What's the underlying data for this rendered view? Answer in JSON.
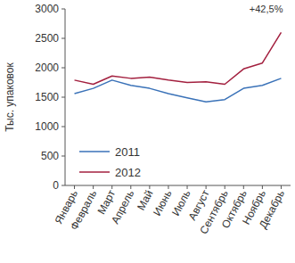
{
  "chart_data": {
    "type": "line",
    "y_label": "Тыс. упаковок",
    "annotation": "+42,5%",
    "categories": [
      "Январь",
      "Февраль",
      "Март",
      "Апрель",
      "Май",
      "Июнь",
      "Июль",
      "Август",
      "Сентябрь",
      "Октябрь",
      "Ноябрь",
      "Декабрь"
    ],
    "series": [
      {
        "name": "2011",
        "color": "#3a72b8",
        "values": [
          1560,
          1650,
          1790,
          1700,
          1650,
          1560,
          1490,
          1420,
          1460,
          1650,
          1700,
          1820
        ]
      },
      {
        "name": "2012",
        "color": "#a3203f",
        "values": [
          1790,
          1720,
          1860,
          1820,
          1840,
          1790,
          1750,
          1760,
          1720,
          1980,
          2080,
          2600
        ]
      }
    ],
    "ylim": [
      0,
      3000
    ],
    "yticks": [
      0,
      500,
      1000,
      1500,
      2000,
      2500,
      3000
    ],
    "grid": false,
    "legend": "lower-left"
  }
}
